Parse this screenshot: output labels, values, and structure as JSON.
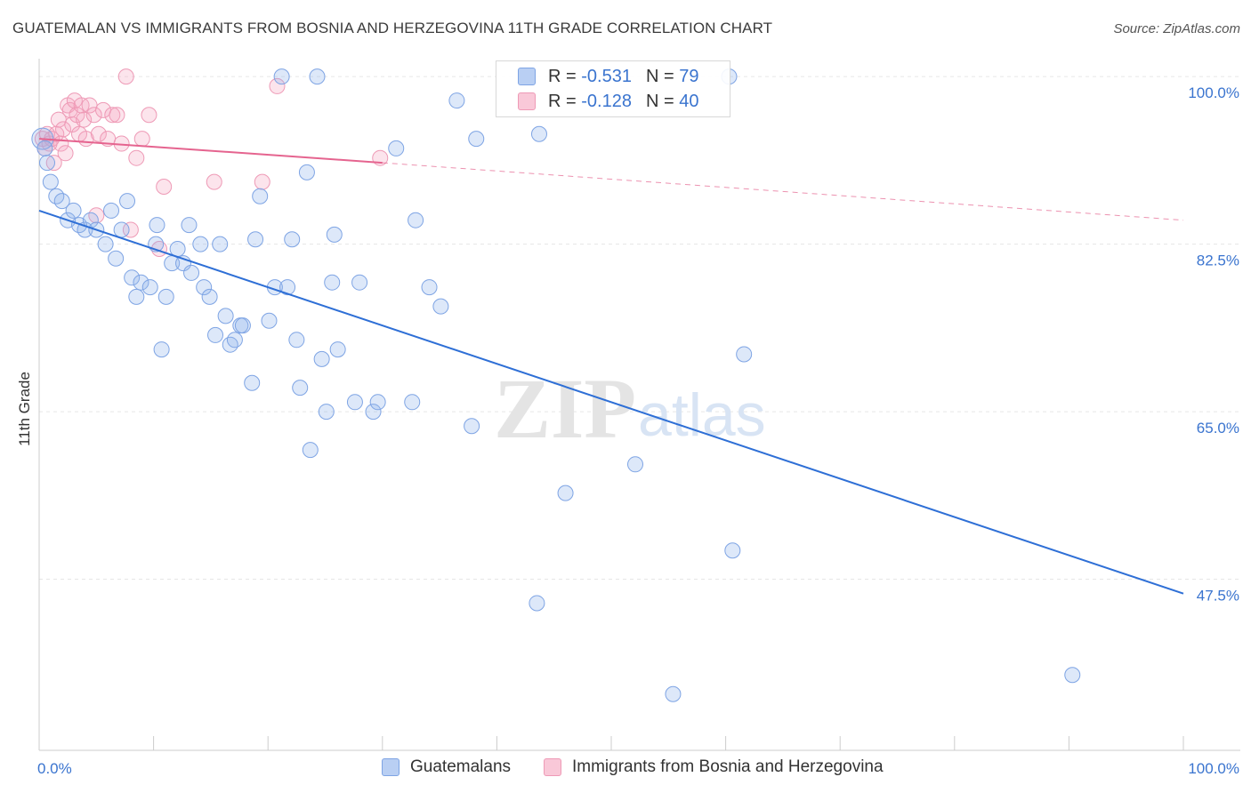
{
  "title": "GUATEMALAN VS IMMIGRANTS FROM BOSNIA AND HERZEGOVINA 11TH GRADE CORRELATION CHART",
  "source": "Source: ZipAtlas.com",
  "watermark": {
    "zip": "ZIP",
    "atlas": "atlas"
  },
  "legend": {
    "series1": {
      "r_label": "R =",
      "r_value": "-0.531",
      "n_label": "N =",
      "n_value": "79"
    },
    "series2": {
      "r_label": "R =",
      "r_value": "-0.128",
      "n_label": "N =",
      "n_value": "40"
    }
  },
  "chart_data": {
    "type": "scatter",
    "title": "GUATEMALAN VS IMMIGRANTS FROM BOSNIA AND HERZEGOVINA 11TH GRADE CORRELATION CHART",
    "xlabel": "",
    "ylabel": "11th Grade",
    "xlim": [
      0,
      100
    ],
    "ylim": [
      30,
      101.5
    ],
    "x_tick_labels": [
      "0.0%",
      "100.0%"
    ],
    "y_ticks": [
      47.5,
      65.0,
      82.5,
      100.0
    ],
    "y_tick_labels": [
      "47.5%",
      "65.0%",
      "82.5%",
      "100.0%"
    ],
    "grid": true,
    "legend_position": "bottom",
    "colors": {
      "guatemalans": "#8fb3ea",
      "bosnia": "#f4a6c0",
      "guatemalans_line": "#2e6fd6",
      "bosnia_line": "#e5648f"
    },
    "series": [
      {
        "name": "Guatemalans",
        "trend": {
          "x": [
            0,
            100
          ],
          "y": [
            86.0,
            46.0
          ]
        },
        "points": [
          [
            0.3,
            93.5
          ],
          [
            0.5,
            92.5
          ],
          [
            0.7,
            91.0
          ],
          [
            1.0,
            89.0
          ],
          [
            1.5,
            87.5
          ],
          [
            2.0,
            87.0
          ],
          [
            2.5,
            85.0
          ],
          [
            3.0,
            86.0
          ],
          [
            3.5,
            84.5
          ],
          [
            4.0,
            84.0
          ],
          [
            4.5,
            85.0
          ],
          [
            5.0,
            84.0
          ],
          [
            5.8,
            82.5
          ],
          [
            6.3,
            86.0
          ],
          [
            6.7,
            81.0
          ],
          [
            7.2,
            84.0
          ],
          [
            7.7,
            87.0
          ],
          [
            8.1,
            79.0
          ],
          [
            8.5,
            77.0
          ],
          [
            8.9,
            78.5
          ],
          [
            9.7,
            78.0
          ],
          [
            10.2,
            82.5
          ],
          [
            10.3,
            84.5
          ],
          [
            10.7,
            71.5
          ],
          [
            11.1,
            77.0
          ],
          [
            11.6,
            80.5
          ],
          [
            12.1,
            82.0
          ],
          [
            12.6,
            80.5
          ],
          [
            13.1,
            84.5
          ],
          [
            13.3,
            79.5
          ],
          [
            14.1,
            82.5
          ],
          [
            14.4,
            78.0
          ],
          [
            14.9,
            77.0
          ],
          [
            15.4,
            73.0
          ],
          [
            15.8,
            82.5
          ],
          [
            16.3,
            75.0
          ],
          [
            16.7,
            72.0
          ],
          [
            17.1,
            72.5
          ],
          [
            17.6,
            74.0
          ],
          [
            17.8,
            74.0
          ],
          [
            18.6,
            68.0
          ],
          [
            18.9,
            83.0
          ],
          [
            19.3,
            87.5
          ],
          [
            20.1,
            74.5
          ],
          [
            20.6,
            78.0
          ],
          [
            21.2,
            100.0
          ],
          [
            21.7,
            78.0
          ],
          [
            22.1,
            83.0
          ],
          [
            22.5,
            72.5
          ],
          [
            22.8,
            67.5
          ],
          [
            23.4,
            90.0
          ],
          [
            23.7,
            61.0
          ],
          [
            24.3,
            100.0
          ],
          [
            24.7,
            70.5
          ],
          [
            25.1,
            65.0
          ],
          [
            25.6,
            78.5
          ],
          [
            25.8,
            83.5
          ],
          [
            26.1,
            71.5
          ],
          [
            27.6,
            66.0
          ],
          [
            28.0,
            78.5
          ],
          [
            29.2,
            65.0
          ],
          [
            29.6,
            66.0
          ],
          [
            31.2,
            92.5
          ],
          [
            32.6,
            66.0
          ],
          [
            32.9,
            85.0
          ],
          [
            34.1,
            78.0
          ],
          [
            35.1,
            76.0
          ],
          [
            36.5,
            97.5
          ],
          [
            37.8,
            63.5
          ],
          [
            38.2,
            93.5
          ],
          [
            43.5,
            45.0
          ],
          [
            43.7,
            94.0
          ],
          [
            46.0,
            56.5
          ],
          [
            52.1,
            59.5
          ],
          [
            55.4,
            35.5
          ],
          [
            60.3,
            100.0
          ],
          [
            60.6,
            50.5
          ],
          [
            61.6,
            71.0
          ],
          [
            90.3,
            37.5
          ]
        ]
      },
      {
        "name": "Immigrants from Bosnia and Herzegovina",
        "trend": {
          "x": [
            0,
            30
          ],
          "y": [
            93.5,
            91.0
          ]
        },
        "trend_dashed": {
          "x": [
            30,
            100
          ],
          "y": [
            91.0,
            85.0
          ]
        },
        "points": [
          [
            0.3,
            93.5
          ],
          [
            0.5,
            92.5
          ],
          [
            0.7,
            94.0
          ],
          [
            0.9,
            93.0
          ],
          [
            1.1,
            93.5
          ],
          [
            1.3,
            91.0
          ],
          [
            1.5,
            94.0
          ],
          [
            1.7,
            95.5
          ],
          [
            1.9,
            93.0
          ],
          [
            2.1,
            94.5
          ],
          [
            2.3,
            92.0
          ],
          [
            2.5,
            97.0
          ],
          [
            2.7,
            96.5
          ],
          [
            2.9,
            95.0
          ],
          [
            3.1,
            97.5
          ],
          [
            3.3,
            96.0
          ],
          [
            3.5,
            94.0
          ],
          [
            3.7,
            97.0
          ],
          [
            3.9,
            95.5
          ],
          [
            4.1,
            93.5
          ],
          [
            4.4,
            97.0
          ],
          [
            4.8,
            96.0
          ],
          [
            5.0,
            85.5
          ],
          [
            5.2,
            94.0
          ],
          [
            5.6,
            96.5
          ],
          [
            6.0,
            93.5
          ],
          [
            6.4,
            96.0
          ],
          [
            6.8,
            96.0
          ],
          [
            7.2,
            93.0
          ],
          [
            7.6,
            100.0
          ],
          [
            8.0,
            84.0
          ],
          [
            8.5,
            91.5
          ],
          [
            9.0,
            93.5
          ],
          [
            9.6,
            96.0
          ],
          [
            10.5,
            82.0
          ],
          [
            10.9,
            88.5
          ],
          [
            15.3,
            89.0
          ],
          [
            19.5,
            89.0
          ],
          [
            20.8,
            99.0
          ],
          [
            29.8,
            91.5
          ]
        ]
      }
    ]
  },
  "bottom_legend": {
    "item1": "Guatemalans",
    "item2": "Immigrants from Bosnia and Herzegovina"
  }
}
